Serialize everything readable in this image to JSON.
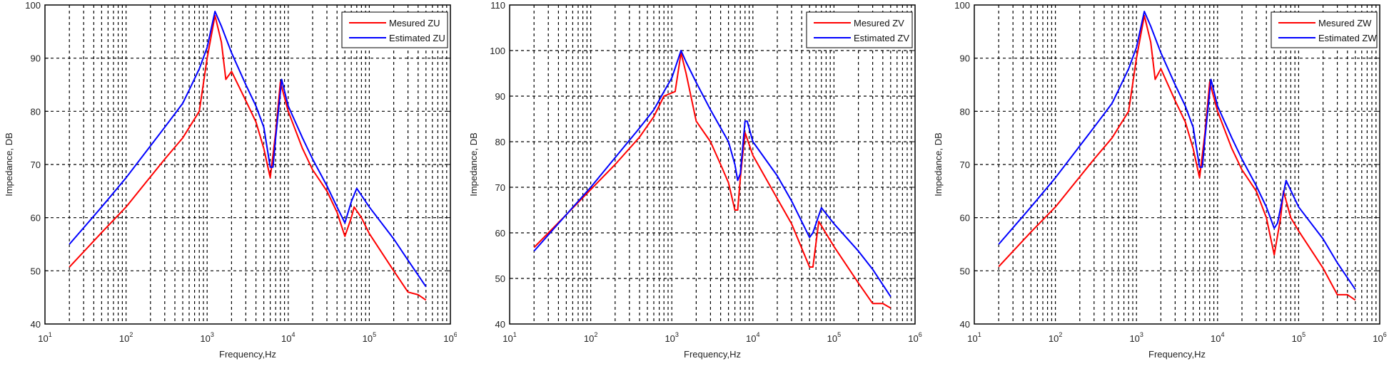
{
  "chart_data": [
    {
      "type": "line",
      "title": "",
      "xlabel": "Frequency,Hz",
      "ylabel": "Impedance, DB",
      "xscale": "log",
      "xlim": [
        10,
        1000000
      ],
      "ylim": [
        40,
        100
      ],
      "xticks": [
        "10^1",
        "10^2",
        "10^3",
        "10^4",
        "10^5",
        "10^6"
      ],
      "yticks": [
        40,
        50,
        60,
        70,
        80,
        90,
        100
      ],
      "grid": true,
      "legend_position": "upper right",
      "series": [
        {
          "name": "Mesured ZU",
          "color": "#ff0000",
          "x": [
            20,
            50,
            100,
            200,
            300,
            500,
            800,
            1000,
            1250,
            1500,
            1700,
            2000,
            3000,
            4000,
            5000,
            6000,
            7000,
            8000,
            10000,
            15000,
            20000,
            30000,
            40000,
            50000,
            60000,
            65000,
            80000,
            100000,
            200000,
            300000,
            400000,
            500000
          ],
          "y": [
            50.7,
            57.2,
            62,
            67.7,
            71,
            75,
            80,
            90,
            98,
            93,
            86,
            87.5,
            82,
            78,
            73,
            67.5,
            76,
            85.5,
            80,
            73,
            69,
            65,
            61,
            56.5,
            60,
            62,
            60,
            57,
            50,
            46,
            45.5,
            44.5
          ]
        },
        {
          "name": "Estimated ZU",
          "color": "#0000ff",
          "x": [
            20,
            50,
            100,
            200,
            300,
            500,
            600,
            800,
            1000,
            1250,
            1500,
            2000,
            3000,
            4000,
            5000,
            6000,
            6500,
            7000,
            8300,
            10000,
            15000,
            20000,
            30000,
            40000,
            50000,
            60000,
            70000,
            100000,
            200000,
            300000,
            500000
          ],
          "y": [
            55,
            62,
            67.5,
            73.5,
            77,
            81.5,
            84,
            88,
            92,
            98.8,
            96,
            91,
            85,
            81,
            77,
            69.5,
            69.5,
            75,
            86,
            81,
            75,
            71,
            66,
            62,
            59,
            63,
            65.5,
            62,
            56,
            52,
            47
          ]
        }
      ]
    },
    {
      "type": "line",
      "title": "",
      "xlabel": "Frequency,Hz",
      "ylabel": "Impedance, DB",
      "xscale": "log",
      "xlim": [
        10,
        1000000
      ],
      "ylim": [
        40,
        110
      ],
      "xticks": [
        "10^1",
        "10^2",
        "10^3",
        "10^4",
        "10^5",
        "10^6"
      ],
      "yticks": [
        40,
        50,
        60,
        70,
        80,
        90,
        100,
        110
      ],
      "grid": true,
      "legend_position": "upper right",
      "series": [
        {
          "name": "Mesured ZV",
          "color": "#ff0000",
          "x": [
            20,
            50,
            100,
            200,
            400,
            600,
            800,
            1100,
            1300,
            1500,
            2000,
            3000,
            4000,
            5000,
            6000,
            6500,
            7000,
            8000,
            10000,
            20000,
            30000,
            50000,
            55000,
            65000,
            100000,
            200000,
            300000,
            400000,
            500000
          ],
          "y": [
            56.8,
            64,
            69.5,
            75,
            81,
            85.5,
            90,
            91,
            99.5,
            95,
            84.5,
            80,
            75,
            71,
            65,
            65,
            72,
            82,
            77,
            67.5,
            62,
            52.5,
            52.5,
            62.5,
            57,
            49,
            44.5,
            44.5,
            43.5
          ]
        },
        {
          "name": "Estimated ZV",
          "color": "#0000ff",
          "x": [
            20,
            50,
            100,
            200,
            400,
            600,
            800,
            1000,
            1300,
            1500,
            2000,
            3000,
            5000,
            6000,
            6500,
            7000,
            8000,
            8500,
            10000,
            20000,
            30000,
            50000,
            55000,
            70000,
            100000,
            200000,
            300000,
            500000
          ],
          "y": [
            56,
            64,
            70,
            76.5,
            83,
            87,
            91,
            94,
            100,
            97.5,
            93,
            87,
            80,
            75,
            71.5,
            73,
            84.5,
            84.5,
            80,
            72.5,
            67,
            59,
            60,
            65.5,
            62,
            56,
            52,
            46
          ]
        }
      ]
    },
    {
      "type": "line",
      "title": "",
      "xlabel": "Frequency,Hz",
      "ylabel": "Impedance, DB",
      "xscale": "log",
      "xlim": [
        10,
        1000000
      ],
      "ylim": [
        40,
        100
      ],
      "xticks": [
        "10^1",
        "10^2",
        "10^3",
        "10^4",
        "10^5",
        "10^6"
      ],
      "yticks": [
        40,
        50,
        60,
        70,
        80,
        90,
        100
      ],
      "grid": true,
      "legend_position": "upper right",
      "series": [
        {
          "name": "Mesured ZW",
          "color": "#ff0000",
          "x": [
            20,
            50,
            100,
            200,
            300,
            500,
            800,
            1000,
            1250,
            1500,
            1700,
            2000,
            3000,
            4000,
            5000,
            6000,
            7000,
            8000,
            10000,
            15000,
            20000,
            30000,
            40000,
            50000,
            60000,
            65000,
            80000,
            100000,
            200000,
            300000,
            400000,
            500000
          ],
          "y": [
            50.8,
            57.3,
            62,
            67.7,
            71,
            75,
            80,
            90,
            98,
            93,
            86,
            88,
            82,
            78,
            73,
            67.5,
            76,
            85.5,
            80,
            73,
            69,
            65,
            60,
            53,
            60,
            65,
            60,
            57.5,
            50.5,
            45.5,
            45.5,
            44.5
          ]
        },
        {
          "name": "Estimated ZW",
          "color": "#0000ff",
          "x": [
            20,
            50,
            100,
            200,
            300,
            500,
            600,
            800,
            1000,
            1250,
            1500,
            2000,
            3000,
            4000,
            5000,
            6000,
            6500,
            7000,
            8300,
            10000,
            15000,
            20000,
            30000,
            40000,
            50000,
            55000,
            70000,
            100000,
            200000,
            300000,
            500000
          ],
          "y": [
            55,
            62,
            67.5,
            73.5,
            77,
            81.5,
            84,
            88,
            92,
            98.8,
            96,
            91,
            85,
            81,
            77,
            69.5,
            69.5,
            75,
            86,
            81,
            75,
            71,
            66,
            62,
            58,
            59,
            67,
            62,
            56,
            51.5,
            46.5
          ]
        }
      ]
    }
  ]
}
